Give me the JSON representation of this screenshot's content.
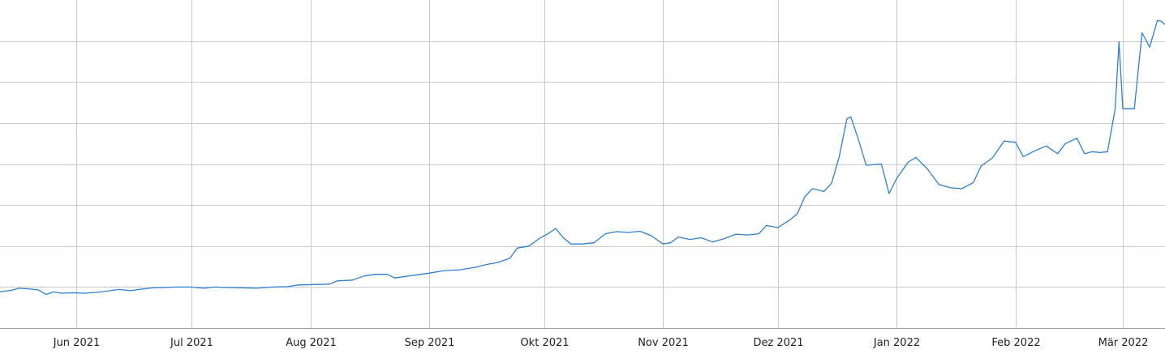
{
  "chart_data": {
    "type": "line",
    "title": "",
    "xlabel": "",
    "ylabel": "",
    "grid": true,
    "legend": "none",
    "x_range": [
      "2021-05-12",
      "2022-03-12"
    ],
    "ylim": [
      0,
      8
    ],
    "y_gridlines": [
      1,
      2,
      3,
      4,
      5,
      6,
      7
    ],
    "x_ticks": [
      {
        "date": "2021-06-01",
        "label": "Jun 2021"
      },
      {
        "date": "2021-07-01",
        "label": "Jul 2021"
      },
      {
        "date": "2021-08-01",
        "label": "Aug 2021"
      },
      {
        "date": "2021-09-01",
        "label": "Sep 2021"
      },
      {
        "date": "2021-10-01",
        "label": "Okt 2021"
      },
      {
        "date": "2021-11-01",
        "label": "Nov 2021"
      },
      {
        "date": "2021-12-01",
        "label": "Dez 2021"
      },
      {
        "date": "2022-01-01",
        "label": "Jan 2022"
      },
      {
        "date": "2022-02-01",
        "label": "Feb 2022"
      },
      {
        "date": "2022-03-01",
        "label": "Mär 2022"
      }
    ],
    "series": [
      {
        "color": "#2f7fd1",
        "points": [
          [
            "2021-05-12",
            0.88
          ],
          [
            "2021-05-15",
            0.92
          ],
          [
            "2021-05-17",
            0.97
          ],
          [
            "2021-05-20",
            0.95
          ],
          [
            "2021-05-22",
            0.93
          ],
          [
            "2021-05-24",
            0.82
          ],
          [
            "2021-05-26",
            0.88
          ],
          [
            "2021-05-28",
            0.85
          ],
          [
            "2021-05-31",
            0.86
          ],
          [
            "2021-06-03",
            0.85
          ],
          [
            "2021-06-06",
            0.87
          ],
          [
            "2021-06-09",
            0.9
          ],
          [
            "2021-06-12",
            0.94
          ],
          [
            "2021-06-15",
            0.91
          ],
          [
            "2021-06-18",
            0.95
          ],
          [
            "2021-06-21",
            0.98
          ],
          [
            "2021-06-24",
            0.99
          ],
          [
            "2021-06-27",
            1.0
          ],
          [
            "2021-07-01",
            1.0
          ],
          [
            "2021-07-04",
            0.97
          ],
          [
            "2021-07-07",
            1.0
          ],
          [
            "2021-07-10",
            0.99
          ],
          [
            "2021-07-14",
            0.98
          ],
          [
            "2021-07-18",
            0.97
          ],
          [
            "2021-07-22",
            1.0
          ],
          [
            "2021-07-26",
            1.01
          ],
          [
            "2021-07-29",
            1.05
          ],
          [
            "2021-08-02",
            1.06
          ],
          [
            "2021-08-06",
            1.07
          ],
          [
            "2021-08-08",
            1.15
          ],
          [
            "2021-08-12",
            1.17
          ],
          [
            "2021-08-15",
            1.27
          ],
          [
            "2021-08-18",
            1.31
          ],
          [
            "2021-08-21",
            1.31
          ],
          [
            "2021-08-23",
            1.22
          ],
          [
            "2021-08-26",
            1.26
          ],
          [
            "2021-08-29",
            1.3
          ],
          [
            "2021-09-01",
            1.34
          ],
          [
            "2021-09-05",
            1.4
          ],
          [
            "2021-09-09",
            1.42
          ],
          [
            "2021-09-13",
            1.48
          ],
          [
            "2021-09-16",
            1.55
          ],
          [
            "2021-09-19",
            1.6
          ],
          [
            "2021-09-22",
            1.7
          ],
          [
            "2021-09-24",
            1.95
          ],
          [
            "2021-09-27",
            2.0
          ],
          [
            "2021-09-30",
            2.2
          ],
          [
            "2021-10-02",
            2.3
          ],
          [
            "2021-10-04",
            2.43
          ],
          [
            "2021-10-06",
            2.2
          ],
          [
            "2021-10-08",
            2.05
          ],
          [
            "2021-10-11",
            2.05
          ],
          [
            "2021-10-14",
            2.08
          ],
          [
            "2021-10-17",
            2.3
          ],
          [
            "2021-10-20",
            2.35
          ],
          [
            "2021-10-23",
            2.33
          ],
          [
            "2021-10-26",
            2.36
          ],
          [
            "2021-10-29",
            2.25
          ],
          [
            "2021-11-01",
            2.05
          ],
          [
            "2021-11-03",
            2.08
          ],
          [
            "2021-11-05",
            2.22
          ],
          [
            "2021-11-08",
            2.16
          ],
          [
            "2021-11-11",
            2.2
          ],
          [
            "2021-11-14",
            2.1
          ],
          [
            "2021-11-17",
            2.18
          ],
          [
            "2021-11-20",
            2.29
          ],
          [
            "2021-11-23",
            2.27
          ],
          [
            "2021-11-26",
            2.3
          ],
          [
            "2021-11-28",
            2.5
          ],
          [
            "2021-12-01",
            2.45
          ],
          [
            "2021-12-04",
            2.63
          ],
          [
            "2021-12-06",
            2.78
          ],
          [
            "2021-12-08",
            3.2
          ],
          [
            "2021-12-10",
            3.4
          ],
          [
            "2021-12-13",
            3.33
          ],
          [
            "2021-12-15",
            3.53
          ],
          [
            "2021-12-17",
            4.18
          ],
          [
            "2021-12-19",
            5.1
          ],
          [
            "2021-12-20",
            5.15
          ],
          [
            "2021-12-22",
            4.6
          ],
          [
            "2021-12-24",
            3.97
          ],
          [
            "2021-12-28",
            4.0
          ],
          [
            "2021-12-30",
            3.28
          ],
          [
            "2022-01-01",
            3.65
          ],
          [
            "2022-01-04",
            4.05
          ],
          [
            "2022-01-06",
            4.16
          ],
          [
            "2022-01-09",
            3.88
          ],
          [
            "2022-01-12",
            3.5
          ],
          [
            "2022-01-15",
            3.42
          ],
          [
            "2022-01-18",
            3.4
          ],
          [
            "2022-01-21",
            3.55
          ],
          [
            "2022-01-23",
            3.95
          ],
          [
            "2022-01-26",
            4.15
          ],
          [
            "2022-01-29",
            4.56
          ],
          [
            "2022-02-01",
            4.53
          ],
          [
            "2022-02-03",
            4.18
          ],
          [
            "2022-02-06",
            4.32
          ],
          [
            "2022-02-09",
            4.44
          ],
          [
            "2022-02-12",
            4.25
          ],
          [
            "2022-02-14",
            4.5
          ],
          [
            "2022-02-17",
            4.63
          ],
          [
            "2022-02-19",
            4.25
          ],
          [
            "2022-02-21",
            4.3
          ],
          [
            "2022-02-23",
            4.28
          ],
          [
            "2022-02-25",
            4.3
          ],
          [
            "2022-02-27",
            5.35
          ],
          [
            "2022-02-28",
            6.98
          ],
          [
            "2022-03-01",
            5.35
          ],
          [
            "2022-03-04",
            5.35
          ],
          [
            "2022-03-06",
            7.2
          ],
          [
            "2022-03-08",
            6.85
          ],
          [
            "2022-03-10",
            7.5
          ],
          [
            "2022-03-11",
            7.48
          ],
          [
            "2022-03-12",
            7.4
          ]
        ]
      }
    ]
  }
}
